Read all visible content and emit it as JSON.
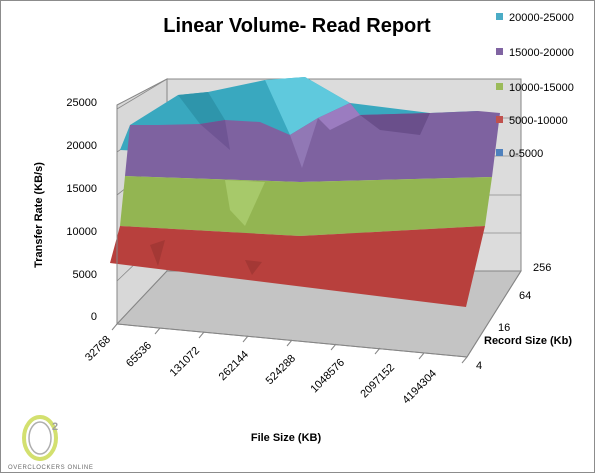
{
  "chart_data": {
    "type": "3d-surface",
    "title": "Linear Volume- Read Report",
    "xlabel": "File Size  (KB)",
    "ylabel": "Transfer Rate  (KB/s)",
    "zlabel": "Record Size (Kb)",
    "file_sizes": [
      "32768",
      "65536",
      "131072",
      "262144",
      "524288",
      "1048576",
      "2097152",
      "4194304"
    ],
    "record_sizes": [
      "4",
      "16",
      "64",
      "256"
    ],
    "y_ticks": [
      "0",
      "5000",
      "10000",
      "15000",
      "20000",
      "25000"
    ],
    "ylim": [
      0,
      25000
    ],
    "legend": [
      {
        "label": "20000-25000",
        "color": "#4bacc6"
      },
      {
        "label": "15000-20000",
        "color": "#8064a2"
      },
      {
        "label": "10000-15000",
        "color": "#9bbb59"
      },
      {
        "label": "5000-10000",
        "color": "#c0504d"
      },
      {
        "label": "0-5000",
        "color": "#4f81bd"
      }
    ],
    "legend_position": "right",
    "grid": true
  },
  "logo": {
    "mark": "O",
    "superscript": "2",
    "text": "OVERCLOCKERS ONLINE"
  }
}
